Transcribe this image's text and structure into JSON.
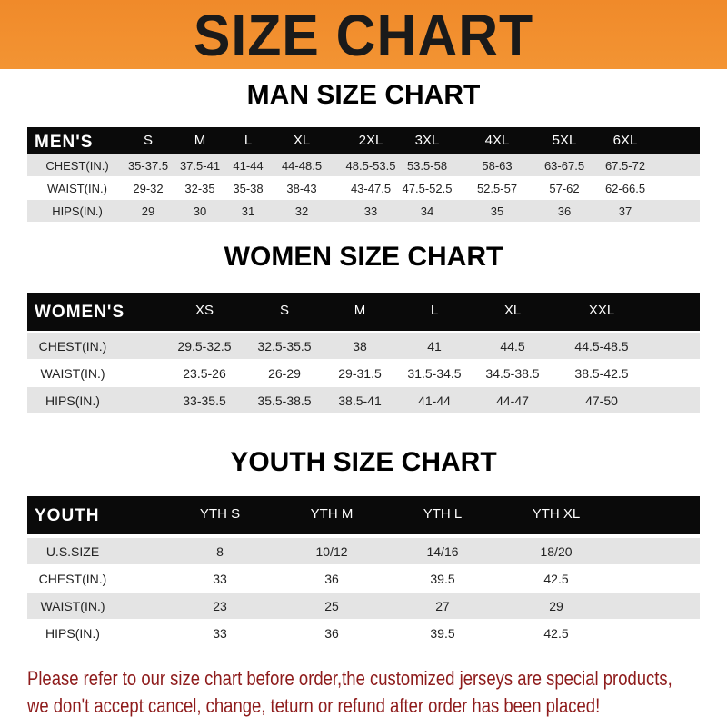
{
  "title": "SIZE CHART",
  "men": {
    "heading": "MAN SIZE CHART",
    "header": [
      "MEN'S",
      "S",
      "M",
      "L",
      "XL",
      "2XL",
      "3XL",
      "4XL",
      "5XL",
      "6XL"
    ],
    "rows": [
      [
        "CHEST(IN.)",
        "35-37.5",
        "37.5-41",
        "41-44",
        "44-48.5",
        "48.5-53.5",
        "53.5-58",
        "58-63",
        "63-67.5",
        "67.5-72"
      ],
      [
        "WAIST(IN.)",
        "29-32",
        "32-35",
        "35-38",
        "38-43",
        "43-47.5",
        "47.5-52.5",
        "52.5-57",
        "57-62",
        "62-66.5"
      ],
      [
        "HIPS(IN.)",
        "29",
        "30",
        "31",
        "32",
        "33",
        "34",
        "35",
        "36",
        "37"
      ]
    ]
  },
  "women": {
    "heading": "WOMEN SIZE CHART",
    "header": [
      "WOMEN'S",
      "XS",
      "S",
      "M",
      "L",
      "XL",
      "XXL"
    ],
    "rows": [
      [
        "CHEST(IN.)",
        "29.5-32.5",
        "32.5-35.5",
        "38",
        "41",
        "44.5",
        "44.5-48.5"
      ],
      [
        "WAIST(IN.)",
        "23.5-26",
        "26-29",
        "29-31.5",
        "31.5-34.5",
        "34.5-38.5",
        "38.5-42.5"
      ],
      [
        "HIPS(IN.)",
        "33-35.5",
        "35.5-38.5",
        "38.5-41",
        "41-44",
        "44-47",
        "47-50"
      ]
    ]
  },
  "youth": {
    "heading": "YOUTH SIZE CHART",
    "header": [
      "YOUTH",
      "YTH S",
      "YTH M",
      "YTH L",
      "YTH XL"
    ],
    "rows": [
      [
        "U.S.SIZE",
        "8",
        "10/12",
        "14/16",
        "18/20"
      ],
      [
        "CHEST(IN.)",
        "33",
        "36",
        "39.5",
        "42.5"
      ],
      [
        "WAIST(IN.)",
        "23",
        "25",
        "27",
        "29"
      ],
      [
        "HIPS(IN.)",
        "33",
        "36",
        "39.5",
        "42.5"
      ]
    ]
  },
  "footer": [
    "Please refer to our size chart before order,the customized jerseys are special products,",
    "we don't accept cancel, change, teturn or refund after order has been placed!"
  ],
  "colors": {
    "banner": "#f08a2a",
    "header_row": "#0a0a0a",
    "stripe": "#e4e4e4",
    "footer_text": "#8e1b1b"
  }
}
